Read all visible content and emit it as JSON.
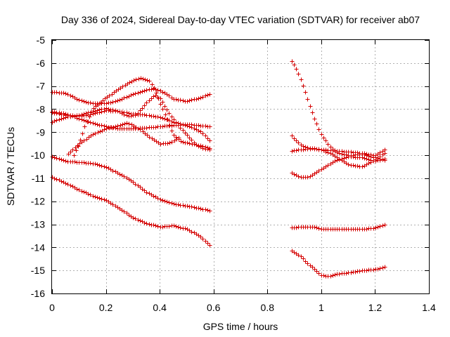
{
  "chart_data": {
    "type": "scatter",
    "title": "Day 336 of 2024, Sidereal Day-to-day VTEC variation (SDTVAR) for receiver ab07",
    "xlabel": "GPS time / hours",
    "ylabel": "SDTVAR / TECUs",
    "xlim": [
      0,
      1.4
    ],
    "ylim": [
      -16,
      -5
    ],
    "xticks": [
      0,
      0.2,
      0.4,
      0.6,
      0.8,
      1,
      1.2,
      1.4
    ],
    "xtick_labels": [
      "0",
      "0.2",
      "0.4",
      "0.6",
      "0.8",
      "1",
      "1.2",
      "1.4"
    ],
    "yticks": [
      -16,
      -15,
      -14,
      -13,
      -12,
      -11,
      -10,
      -9,
      -8,
      -7,
      -6,
      -5
    ],
    "ytick_labels": [
      "-16",
      "-15",
      "-14",
      "-13",
      "-12",
      "-11",
      "-10",
      "-9",
      "-8",
      "-7",
      "-6",
      "-5"
    ],
    "grid": true,
    "marker": "+",
    "marker_color": "#d40000",
    "series": [
      {
        "name": "s1",
        "points": [
          [
            0,
            -7.25
          ],
          [
            0.05,
            -7.3
          ],
          [
            0.1,
            -7.6
          ],
          [
            0.15,
            -7.75
          ],
          [
            0.2,
            -7.75
          ],
          [
            0.25,
            -7.6
          ],
          [
            0.3,
            -7.35
          ],
          [
            0.35,
            -7.15
          ],
          [
            0.38,
            -7.1
          ],
          [
            0.42,
            -7.3
          ],
          [
            0.45,
            -7.55
          ],
          [
            0.5,
            -7.65
          ],
          [
            0.55,
            -7.5
          ],
          [
            0.585,
            -7.35
          ]
        ]
      },
      {
        "name": "s2",
        "points": [
          [
            0,
            -8.15
          ],
          [
            0.05,
            -8.25
          ],
          [
            0.1,
            -8.3
          ],
          [
            0.15,
            -8.2
          ],
          [
            0.2,
            -8.05
          ],
          [
            0.25,
            -8.1
          ],
          [
            0.3,
            -8.2
          ],
          [
            0.35,
            -8.25
          ],
          [
            0.4,
            -8.35
          ],
          [
            0.45,
            -8.55
          ],
          [
            0.5,
            -8.7
          ],
          [
            0.55,
            -8.95
          ],
          [
            0.585,
            -9.35
          ]
        ]
      },
      {
        "name": "s3",
        "points": [
          [
            0,
            -8.1
          ],
          [
            0.05,
            -8.2
          ],
          [
            0.1,
            -8.4
          ],
          [
            0.15,
            -8.6
          ],
          [
            0.2,
            -8.75
          ],
          [
            0.25,
            -8.85
          ],
          [
            0.3,
            -8.85
          ],
          [
            0.35,
            -8.8
          ],
          [
            0.4,
            -8.75
          ],
          [
            0.45,
            -8.7
          ],
          [
            0.5,
            -8.65
          ],
          [
            0.55,
            -8.7
          ],
          [
            0.585,
            -8.75
          ]
        ]
      },
      {
        "name": "s4",
        "points": [
          [
            0,
            -8.55
          ],
          [
            0.05,
            -8.35
          ],
          [
            0.1,
            -8.25
          ],
          [
            0.15,
            -8.1
          ],
          [
            0.2,
            -7.95
          ],
          [
            0.25,
            -8.1
          ],
          [
            0.28,
            -8.3
          ],
          [
            0.31,
            -8.25
          ],
          [
            0.33,
            -8.0
          ],
          [
            0.36,
            -7.6
          ],
          [
            0.38,
            -7.4
          ],
          [
            0.4,
            -7.5
          ],
          [
            0.43,
            -8.1
          ],
          [
            0.46,
            -8.6
          ],
          [
            0.5,
            -9.1
          ],
          [
            0.53,
            -9.5
          ],
          [
            0.56,
            -9.7
          ],
          [
            0.585,
            -9.75
          ]
        ]
      },
      {
        "name": "s5",
        "points": [
          [
            0.08,
            -10.0
          ],
          [
            0.1,
            -9.5
          ],
          [
            0.12,
            -8.8
          ],
          [
            0.15,
            -8.0
          ],
          [
            0.2,
            -7.5
          ],
          [
            0.25,
            -7.1
          ],
          [
            0.3,
            -6.75
          ],
          [
            0.33,
            -6.65
          ],
          [
            0.36,
            -6.75
          ],
          [
            0.38,
            -7.1
          ],
          [
            0.4,
            -7.7
          ],
          [
            0.43,
            -8.5
          ],
          [
            0.45,
            -9.1
          ],
          [
            0.48,
            -9.4
          ],
          [
            0.52,
            -9.5
          ],
          [
            0.56,
            -9.6
          ],
          [
            0.585,
            -9.7
          ]
        ]
      },
      {
        "name": "s6",
        "points": [
          [
            0.06,
            -9.95
          ],
          [
            0.1,
            -9.5
          ],
          [
            0.15,
            -9.1
          ],
          [
            0.2,
            -8.85
          ],
          [
            0.25,
            -8.7
          ],
          [
            0.28,
            -8.6
          ],
          [
            0.3,
            -8.7
          ],
          [
            0.33,
            -8.9
          ],
          [
            0.36,
            -9.2
          ],
          [
            0.4,
            -9.5
          ],
          [
            0.44,
            -9.45
          ],
          [
            0.47,
            -9.25
          ]
        ]
      },
      {
        "name": "s7",
        "points": [
          [
            0,
            -10.05
          ],
          [
            0.05,
            -10.25
          ],
          [
            0.1,
            -10.3
          ],
          [
            0.15,
            -10.35
          ],
          [
            0.2,
            -10.5
          ],
          [
            0.25,
            -10.8
          ],
          [
            0.3,
            -11.15
          ],
          [
            0.35,
            -11.6
          ],
          [
            0.4,
            -11.9
          ],
          [
            0.45,
            -12.1
          ],
          [
            0.5,
            -12.2
          ],
          [
            0.55,
            -12.3
          ],
          [
            0.585,
            -12.4
          ]
        ]
      },
      {
        "name": "s8",
        "points": [
          [
            0,
            -10.95
          ],
          [
            0.05,
            -11.2
          ],
          [
            0.1,
            -11.5
          ],
          [
            0.15,
            -11.75
          ],
          [
            0.2,
            -11.95
          ],
          [
            0.25,
            -12.3
          ],
          [
            0.3,
            -12.7
          ],
          [
            0.35,
            -12.95
          ],
          [
            0.4,
            -13.1
          ],
          [
            0.45,
            -13.05
          ],
          [
            0.5,
            -13.2
          ],
          [
            0.55,
            -13.5
          ],
          [
            0.585,
            -13.9
          ]
        ]
      },
      {
        "name": "s9",
        "points": [
          [
            0.89,
            -5.9
          ],
          [
            0.91,
            -6.3
          ],
          [
            0.93,
            -6.9
          ],
          [
            0.95,
            -7.6
          ],
          [
            0.97,
            -8.3
          ],
          [
            1.0,
            -9.1
          ],
          [
            1.03,
            -9.6
          ],
          [
            1.06,
            -9.9
          ],
          [
            1.1,
            -10.0
          ],
          [
            1.15,
            -9.95
          ],
          [
            1.2,
            -10.1
          ],
          [
            1.235,
            -10.2
          ]
        ]
      },
      {
        "name": "s10",
        "points": [
          [
            0.89,
            -9.15
          ],
          [
            0.91,
            -9.4
          ],
          [
            0.93,
            -9.6
          ],
          [
            0.96,
            -9.7
          ],
          [
            1.0,
            -9.75
          ],
          [
            1.05,
            -9.8
          ],
          [
            1.1,
            -9.85
          ],
          [
            1.15,
            -9.9
          ],
          [
            1.2,
            -10.0
          ],
          [
            1.235,
            -9.75
          ]
        ]
      },
      {
        "name": "s11",
        "points": [
          [
            0.89,
            -10.75
          ],
          [
            0.92,
            -10.95
          ],
          [
            0.95,
            -10.95
          ],
          [
            1.0,
            -10.6
          ],
          [
            1.05,
            -10.25
          ],
          [
            1.1,
            -10.05
          ],
          [
            1.15,
            -10.1
          ],
          [
            1.2,
            -10.25
          ],
          [
            1.235,
            -10.15
          ]
        ]
      },
      {
        "name": "s12",
        "points": [
          [
            0.89,
            -9.8
          ],
          [
            0.93,
            -9.75
          ],
          [
            0.97,
            -9.7
          ],
          [
            1.0,
            -9.75
          ],
          [
            1.03,
            -9.9
          ],
          [
            1.06,
            -10.1
          ],
          [
            1.1,
            -10.4
          ],
          [
            1.15,
            -10.5
          ],
          [
            1.2,
            -10.2
          ],
          [
            1.235,
            -9.9
          ]
        ]
      },
      {
        "name": "s13",
        "points": [
          [
            0.89,
            -13.15
          ],
          [
            0.93,
            -13.1
          ],
          [
            0.97,
            -13.1
          ],
          [
            1.0,
            -13.2
          ],
          [
            1.05,
            -13.2
          ],
          [
            1.1,
            -13.2
          ],
          [
            1.15,
            -13.2
          ],
          [
            1.2,
            -13.15
          ],
          [
            1.235,
            -13.0
          ]
        ]
      },
      {
        "name": "s14",
        "points": [
          [
            0.89,
            -14.15
          ],
          [
            0.92,
            -14.35
          ],
          [
            0.95,
            -14.7
          ],
          [
            0.98,
            -15.0
          ],
          [
            1.0,
            -15.2
          ],
          [
            1.03,
            -15.25
          ],
          [
            1.06,
            -15.15
          ],
          [
            1.1,
            -15.1
          ],
          [
            1.15,
            -15.0
          ],
          [
            1.2,
            -14.95
          ],
          [
            1.235,
            -14.85
          ]
        ]
      }
    ]
  }
}
